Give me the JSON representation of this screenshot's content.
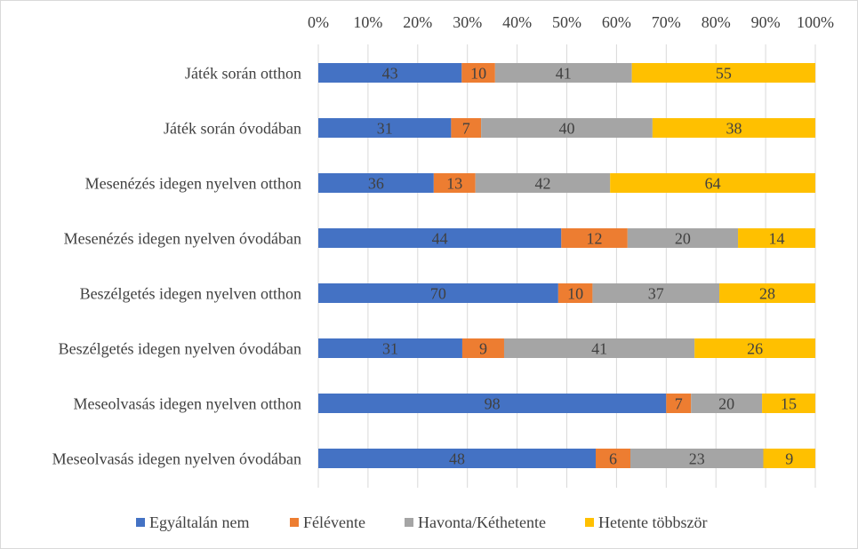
{
  "chart_data": {
    "type": "bar",
    "orientation": "horizontal",
    "stacking": "percent",
    "categories": [
      "Játék során otthon",
      "Játék során óvodában",
      "Mesenézés idegen nyelven otthon",
      "Mesenézés idegen nyelven óvodában",
      "Beszélgetés idegen nyelven otthon",
      "Beszélgetés idegen nyelven óvodában",
      "Meseolvasás idegen nyelven otthon",
      "Meseolvasás idegen nyelven óvodában"
    ],
    "series": [
      {
        "name": "Egyáltalán nem",
        "color": "#4472C4",
        "values": [
          43,
          31,
          36,
          44,
          70,
          31,
          98,
          48
        ]
      },
      {
        "name": "Félévente",
        "color": "#ED7D31",
        "values": [
          10,
          7,
          13,
          12,
          10,
          9,
          7,
          6
        ]
      },
      {
        "name": "Havonta/Kéthetente",
        "color": "#A5A5A5",
        "values": [
          41,
          40,
          42,
          20,
          37,
          41,
          20,
          23
        ]
      },
      {
        "name": "Hetente többször",
        "color": "#FFC000",
        "values": [
          55,
          38,
          64,
          14,
          28,
          26,
          15,
          9
        ]
      }
    ],
    "x_ticks": [
      "0%",
      "10%",
      "20%",
      "30%",
      "40%",
      "50%",
      "60%",
      "70%",
      "80%",
      "90%",
      "100%"
    ],
    "xlim": [
      0,
      100
    ],
    "axis_position": "top",
    "grid": true,
    "legend": "bottom",
    "title": "",
    "xlabel": "",
    "ylabel": ""
  }
}
